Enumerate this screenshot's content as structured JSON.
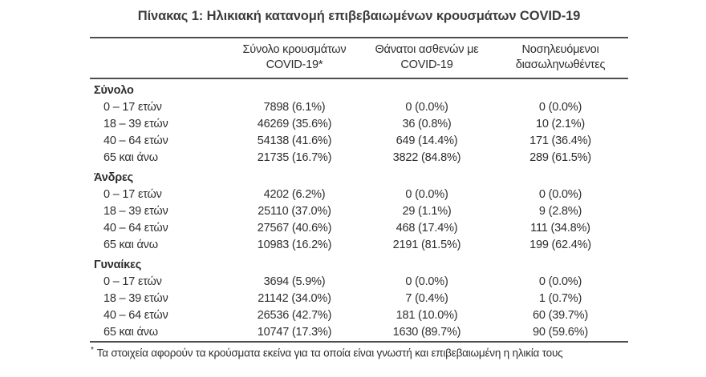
{
  "title": "Πίνακας 1: Ηλικιακή κατανομή επιβεβαιωμένων κρουσμάτων COVID-19",
  "table": {
    "columns": [
      {
        "line1": "Σύνολο κρουσμάτων",
        "line2": "COVID-19*"
      },
      {
        "line1": "Θάνατοι ασθενών με",
        "line2": "COVID-19"
      },
      {
        "line1": "Νοσηλευόμενοι",
        "line2": "διασωληνωθέντες"
      }
    ],
    "sections": [
      {
        "name": "Σύνολο",
        "rows": [
          {
            "label": "0 – 17 ετών",
            "cases": "7898 (6.1%)",
            "deaths": "0 (0.0%)",
            "intubated": "0 (0.0%)"
          },
          {
            "label": "18 – 39 ετών",
            "cases": "46269 (35.6%)",
            "deaths": "36 (0.8%)",
            "intubated": "10 (2.1%)"
          },
          {
            "label": "40 – 64 ετών",
            "cases": "54138 (41.6%)",
            "deaths": "649 (14.4%)",
            "intubated": "171 (36.4%)"
          },
          {
            "label": "65 και άνω",
            "cases": "21735 (16.7%)",
            "deaths": "3822 (84.8%)",
            "intubated": "289 (61.5%)"
          }
        ]
      },
      {
        "name": "Άνδρες",
        "rows": [
          {
            "label": "0 – 17 ετών",
            "cases": "4202 (6.2%)",
            "deaths": "0 (0.0%)",
            "intubated": "0 (0.0%)"
          },
          {
            "label": "18 – 39 ετών",
            "cases": "25110 (37.0%)",
            "deaths": "29 (1.1%)",
            "intubated": "9 (2.8%)"
          },
          {
            "label": "40 – 64 ετών",
            "cases": "27567 (40.6%)",
            "deaths": "468 (17.4%)",
            "intubated": "111 (34.8%)"
          },
          {
            "label": "65 και άνω",
            "cases": "10983 (16.2%)",
            "deaths": "2191 (81.5%)",
            "intubated": "199 (62.4%)"
          }
        ]
      },
      {
        "name": "Γυναίκες",
        "rows": [
          {
            "label": "0 – 17 ετών",
            "cases": "3694 (5.9%)",
            "deaths": "0 (0.0%)",
            "intubated": "0 (0.0%)"
          },
          {
            "label": "18 – 39 ετών",
            "cases": "21142 (34.0%)",
            "deaths": "7 (0.4%)",
            "intubated": "1 (0.7%)"
          },
          {
            "label": "40 – 64 ετών",
            "cases": "26536 (42.7%)",
            "deaths": "181 (10.0%)",
            "intubated": "60 (39.7%)"
          },
          {
            "label": "65 και άνω",
            "cases": "10747 (17.3%)",
            "deaths": "1630 (89.7%)",
            "intubated": "90 (59.6%)"
          }
        ]
      }
    ]
  },
  "footnote": {
    "marker": "*",
    "text": "Τα στοιχεία αφορούν τα κρούσματα εκείνα για τα οποία είναι γνωστή και επιβεβαιωμένη η ηλικία τους"
  },
  "colors": {
    "text": "#2e2e2e",
    "rule": "#4f4f4f",
    "background": "#ffffff"
  }
}
